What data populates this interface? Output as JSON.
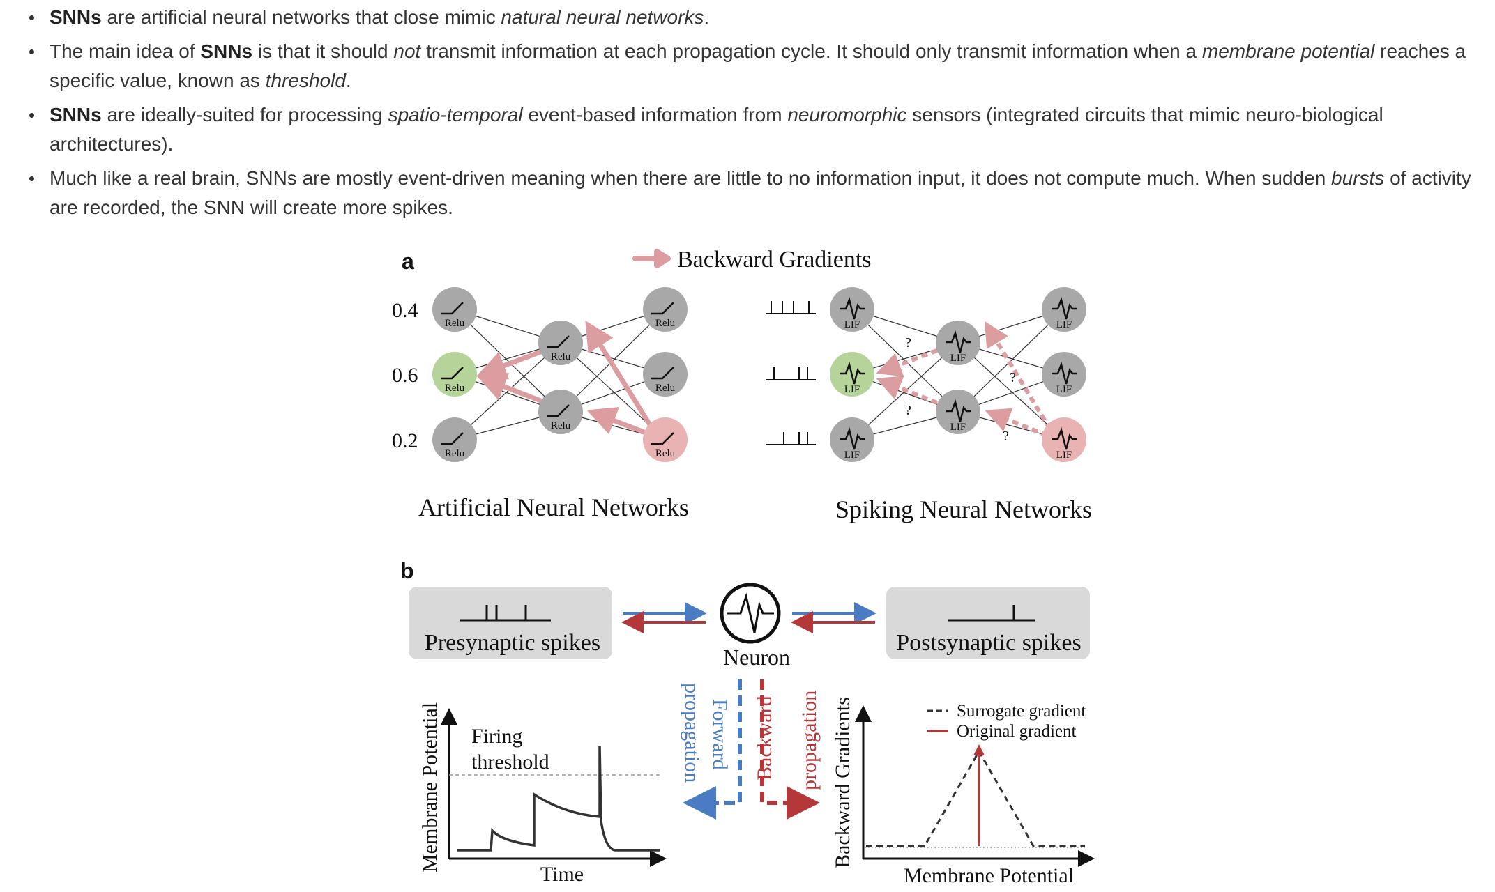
{
  "bullets": [
    {
      "b1": "SNNs",
      "t1": " are artificial neural networks that close mimic ",
      "i1": "natural neural networks",
      "t2": "."
    },
    {
      "t1": "The main idea of ",
      "b1": "SNNs",
      "t2": " is that it should ",
      "i1": "not",
      "t3": " transmit information at each propagation cycle. It should only transmit information when a ",
      "i2": "membrane potential",
      "t4": " reaches a specific value, known as ",
      "i3": "threshold",
      "t5": "."
    },
    {
      "b1": "SNNs",
      "t1": " are ideally-suited for processing ",
      "i1": "spatio-temporal",
      "t2": " event-based information from ",
      "i2": "neuromorphic",
      "t3": " sensors (integrated circuits that mimic neuro-biological architectures)."
    },
    {
      "t1": "Much like a real brain, SNNs are mostly event-driven meaning when there are little to no information input, it does not compute much. When sudden ",
      "i1": "bursts",
      "t2": " of activity are recorded, the SNN will create more spikes."
    }
  ],
  "figure": {
    "panel_a": "a",
    "panel_b": "b",
    "legend_backward": "Backward Gradients",
    "ann_inputs": [
      "0.4",
      "0.6",
      "0.2"
    ],
    "relu": "Relu",
    "lif": "LIF",
    "question": "?",
    "ann_title": "Artificial Neural Networks",
    "snn_title": "Spiking Neural Networks",
    "presynaptic": "Presynaptic spikes",
    "postsynaptic": "Postsynaptic spikes",
    "neuron": "Neuron",
    "forward_1": "Forward",
    "forward_2": "propagation",
    "backward_1": "Backward",
    "backward_2": "propagation",
    "mp_ylabel": "Membrane Potential",
    "mp_xlabel": "Time",
    "firing_1": "Firing",
    "firing_2": "threshold",
    "bg_ylabel": "Backward Gradients",
    "bg_xlabel": "Membrane Potential",
    "legend_surrogate": "Surrogate gradient",
    "legend_original": "Original gradient"
  },
  "colors": {
    "node_gray": "#a8a8a8",
    "node_green": "#b6d39a",
    "node_pink": "#e9b3b3",
    "arrow_pink": "#dc9da0",
    "blue": "#4a7cc4",
    "red": "#b4373a",
    "box_gray": "#d9d9d9"
  }
}
